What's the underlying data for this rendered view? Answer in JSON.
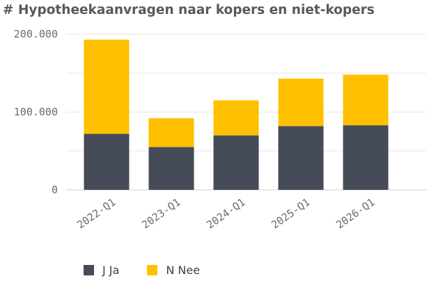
{
  "chart_data": {
    "type": "bar",
    "stacked": true,
    "title": "# Hypotheekaanvragen naar kopers en niet-kopers",
    "categories": [
      "2022-Q1",
      "2023-Q1",
      "2024-Q1",
      "2025-Q1",
      "2026-Q1"
    ],
    "series": [
      {
        "name": "J Ja",
        "color": "#454b57",
        "values": [
          72000,
          55000,
          70000,
          82000,
          83000
        ]
      },
      {
        "name": "N Nee",
        "color": "#ffc000",
        "values": [
          121000,
          37000,
          45000,
          61000,
          65000
        ]
      }
    ],
    "ylim": [
      0,
      210000
    ],
    "yticks": [
      0,
      100000,
      200000
    ],
    "ytick_labels": [
      "0",
      "100.000",
      "200.000"
    ],
    "grid": true,
    "legend_position": "bottom-left"
  }
}
